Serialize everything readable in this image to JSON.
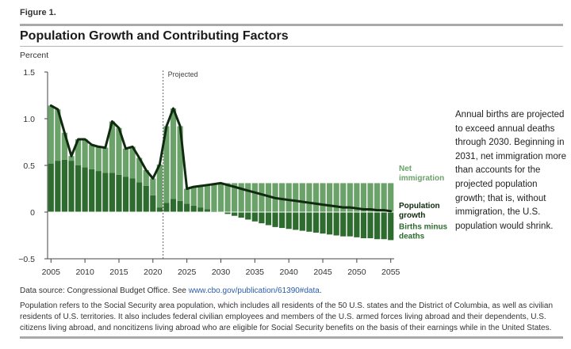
{
  "figure_label": "Figure 1.",
  "title": "Population Growth and Contributing Factors",
  "unit_label": "Percent",
  "annotation": "Annual births are projected to exceed annual deaths through 2030. Beginning in 2031, net immigration more than accounts for the projected population growth; that is, without immigration, the U.S. population would shrink.",
  "source": {
    "prefix": "Data source: Congressional Budget Office. See ",
    "link": "www.cbo.gov/publication/61390#data",
    "suffix": "."
  },
  "footnote": "Population refers to the Social Security area population, which includes all residents of the 50 U.S. states and the District of Columbia, as well as civilian residents of U.S. territories. It also includes federal civilian employees and members of the U.S. armed forces living abroad and their dependents, U.S. citizens living abroad, and noncitizens living abroad who are eligible for Social Security benefits on the basis of their earnings while in the United States.",
  "colors": {
    "net_immigration": "#6aa26a",
    "births_minus_deaths": "#2e6b2e",
    "population_growth": "#0f2a0f",
    "axis": "#444444"
  },
  "chart_data": {
    "type": "bar",
    "title": "Population Growth and Contributing Factors",
    "ylabel": "Percent",
    "ylim": [
      -0.5,
      1.5
    ],
    "yticks": [
      -0.5,
      0,
      0.5,
      1.0,
      1.5
    ],
    "ytick_labels": [
      "−0.5",
      "0",
      "0.5",
      "1.0",
      "1.5"
    ],
    "xlim": [
      2004.5,
      2055.5
    ],
    "xticks": [
      2005,
      2010,
      2015,
      2020,
      2025,
      2030,
      2035,
      2040,
      2045,
      2050,
      2055
    ],
    "xtick_labels": [
      "2005",
      "2010",
      "2015",
      "2020",
      "2025",
      "2030",
      "2035",
      "2040",
      "2045",
      "2050",
      "2055"
    ],
    "projected_start": 2021.5,
    "projected_label": "Projected",
    "years": [
      2005,
      2006,
      2007,
      2008,
      2009,
      2010,
      2011,
      2012,
      2013,
      2014,
      2015,
      2016,
      2017,
      2018,
      2019,
      2020,
      2021,
      2022,
      2023,
      2024,
      2025,
      2026,
      2027,
      2028,
      2029,
      2030,
      2031,
      2032,
      2033,
      2034,
      2035,
      2036,
      2037,
      2038,
      2039,
      2040,
      2041,
      2042,
      2043,
      2044,
      2045,
      2046,
      2047,
      2048,
      2049,
      2050,
      2051,
      2052,
      2053,
      2054,
      2055
    ],
    "series": [
      {
        "name": "Births minus deaths",
        "legend_label": [
          "Births minus",
          "deaths"
        ],
        "values": [
          0.52,
          0.55,
          0.56,
          0.55,
          0.5,
          0.48,
          0.46,
          0.44,
          0.42,
          0.42,
          0.4,
          0.38,
          0.36,
          0.32,
          0.28,
          0.18,
          0.05,
          0.1,
          0.14,
          0.12,
          0.09,
          0.07,
          0.05,
          0.03,
          0.01,
          0.0,
          -0.02,
          -0.04,
          -0.06,
          -0.08,
          -0.1,
          -0.12,
          -0.14,
          -0.16,
          -0.17,
          -0.18,
          -0.19,
          -0.2,
          -0.21,
          -0.22,
          -0.23,
          -0.24,
          -0.25,
          -0.26,
          -0.26,
          -0.27,
          -0.28,
          -0.28,
          -0.29,
          -0.29,
          -0.3
        ]
      },
      {
        "name": "Net immigration",
        "legend_label": [
          "Net",
          "immigration"
        ],
        "values": [
          0.62,
          0.55,
          0.29,
          0.05,
          0.28,
          0.3,
          0.26,
          0.26,
          0.27,
          0.55,
          0.5,
          0.3,
          0.34,
          0.26,
          0.17,
          0.18,
          0.46,
          0.82,
          0.97,
          0.8,
          0.16,
          0.2,
          0.23,
          0.26,
          0.29,
          0.31,
          0.31,
          0.31,
          0.31,
          0.31,
          0.31,
          0.31,
          0.31,
          0.31,
          0.31,
          0.31,
          0.31,
          0.31,
          0.31,
          0.31,
          0.31,
          0.31,
          0.31,
          0.31,
          0.31,
          0.31,
          0.31,
          0.31,
          0.31,
          0.31,
          0.31
        ]
      },
      {
        "name": "Population growth",
        "legend_label": [
          "Population",
          "growth"
        ],
        "type": "line",
        "values": [
          1.14,
          1.1,
          0.85,
          0.6,
          0.78,
          0.78,
          0.72,
          0.7,
          0.69,
          0.97,
          0.9,
          0.68,
          0.7,
          0.58,
          0.45,
          0.36,
          0.51,
          0.92,
          1.11,
          0.92,
          0.25,
          0.27,
          0.28,
          0.29,
          0.3,
          0.31,
          0.29,
          0.27,
          0.25,
          0.23,
          0.21,
          0.19,
          0.17,
          0.15,
          0.14,
          0.13,
          0.12,
          0.11,
          0.1,
          0.09,
          0.08,
          0.07,
          0.06,
          0.05,
          0.05,
          0.04,
          0.03,
          0.03,
          0.02,
          0.02,
          0.01
        ]
      }
    ]
  }
}
